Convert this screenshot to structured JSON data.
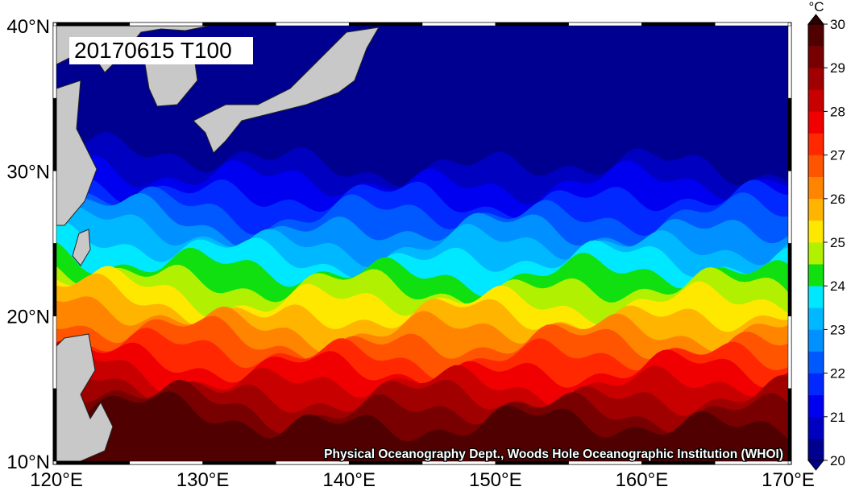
{
  "map": {
    "title": "20170615 T100",
    "credit": "Physical Oceanography Dept., Woods Hole Oceanographic Institution (WHOI)",
    "lon_labels": [
      "120°E",
      "130°E",
      "140°E",
      "150°E",
      "160°E",
      "170°E"
    ],
    "lat_labels": [
      "40°N",
      "30°N",
      "20°N",
      "10°N"
    ],
    "colorbar": {
      "unit": "°C",
      "ticks": [
        20,
        21,
        22,
        23,
        24,
        25,
        26,
        27,
        28,
        29,
        30
      ],
      "colors": [
        "#000090",
        "#0000c0",
        "#0000f0",
        "#0028ff",
        "#0058ff",
        "#0090ff",
        "#00b8ff",
        "#00e8ff",
        "#10e010",
        "#b0f000",
        "#ffe800",
        "#ffb400",
        "#ff8400",
        "#ff5400",
        "#ff2800",
        "#f00000",
        "#c80000",
        "#a00000",
        "#780000",
        "#500000"
      ],
      "over_color": "#2a0000",
      "under_color": "#000090"
    }
  }
}
